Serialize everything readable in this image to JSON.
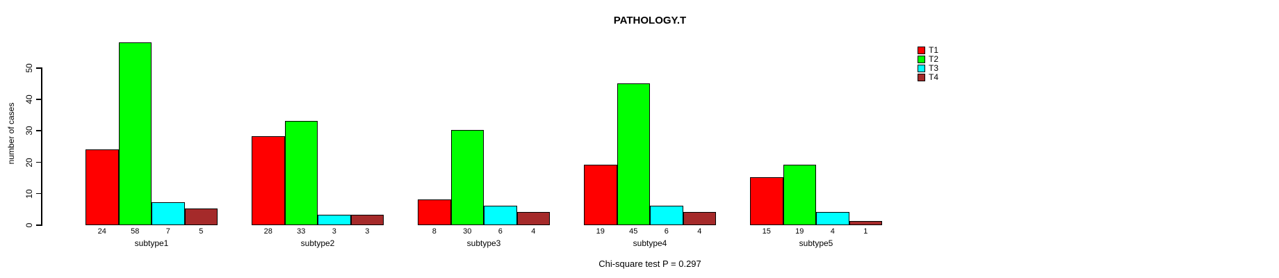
{
  "title": "PATHOLOGY.T",
  "ylabel": "number of cases",
  "footnote": "Chi-square test P = 0.297",
  "chart_data": {
    "type": "bar",
    "title": "PATHOLOGY.T",
    "xlabel": "",
    "ylabel": "number of cases",
    "categories": [
      "subtype1",
      "subtype2",
      "subtype3",
      "subtype4",
      "subtype5"
    ],
    "series": [
      {
        "name": "T1",
        "color": "#ff0000",
        "values": [
          24,
          28,
          8,
          19,
          15
        ]
      },
      {
        "name": "T2",
        "color": "#00ff00",
        "values": [
          58,
          33,
          30,
          45,
          19
        ]
      },
      {
        "name": "T3",
        "color": "#00ffff",
        "values": [
          7,
          3,
          6,
          6,
          4
        ]
      },
      {
        "name": "T4",
        "color": "#a52a2a",
        "values": [
          5,
          3,
          4,
          4,
          1
        ]
      }
    ],
    "yticks": [
      0,
      10,
      20,
      30,
      40,
      50
    ],
    "ylim": [
      0,
      58
    ],
    "grid": false,
    "bar_value_labels_shown": true,
    "legend_position": "top-right",
    "annotation": "Chi-square test P = 0.297"
  },
  "legend": {
    "items": [
      {
        "label": "T1",
        "color": "#ff0000"
      },
      {
        "label": "T2",
        "color": "#00ff00"
      },
      {
        "label": "T3",
        "color": "#00ffff"
      },
      {
        "label": "T4",
        "color": "#a52a2a"
      }
    ]
  },
  "colors": {
    "foreground": "#000000",
    "background": "#ffffff"
  }
}
